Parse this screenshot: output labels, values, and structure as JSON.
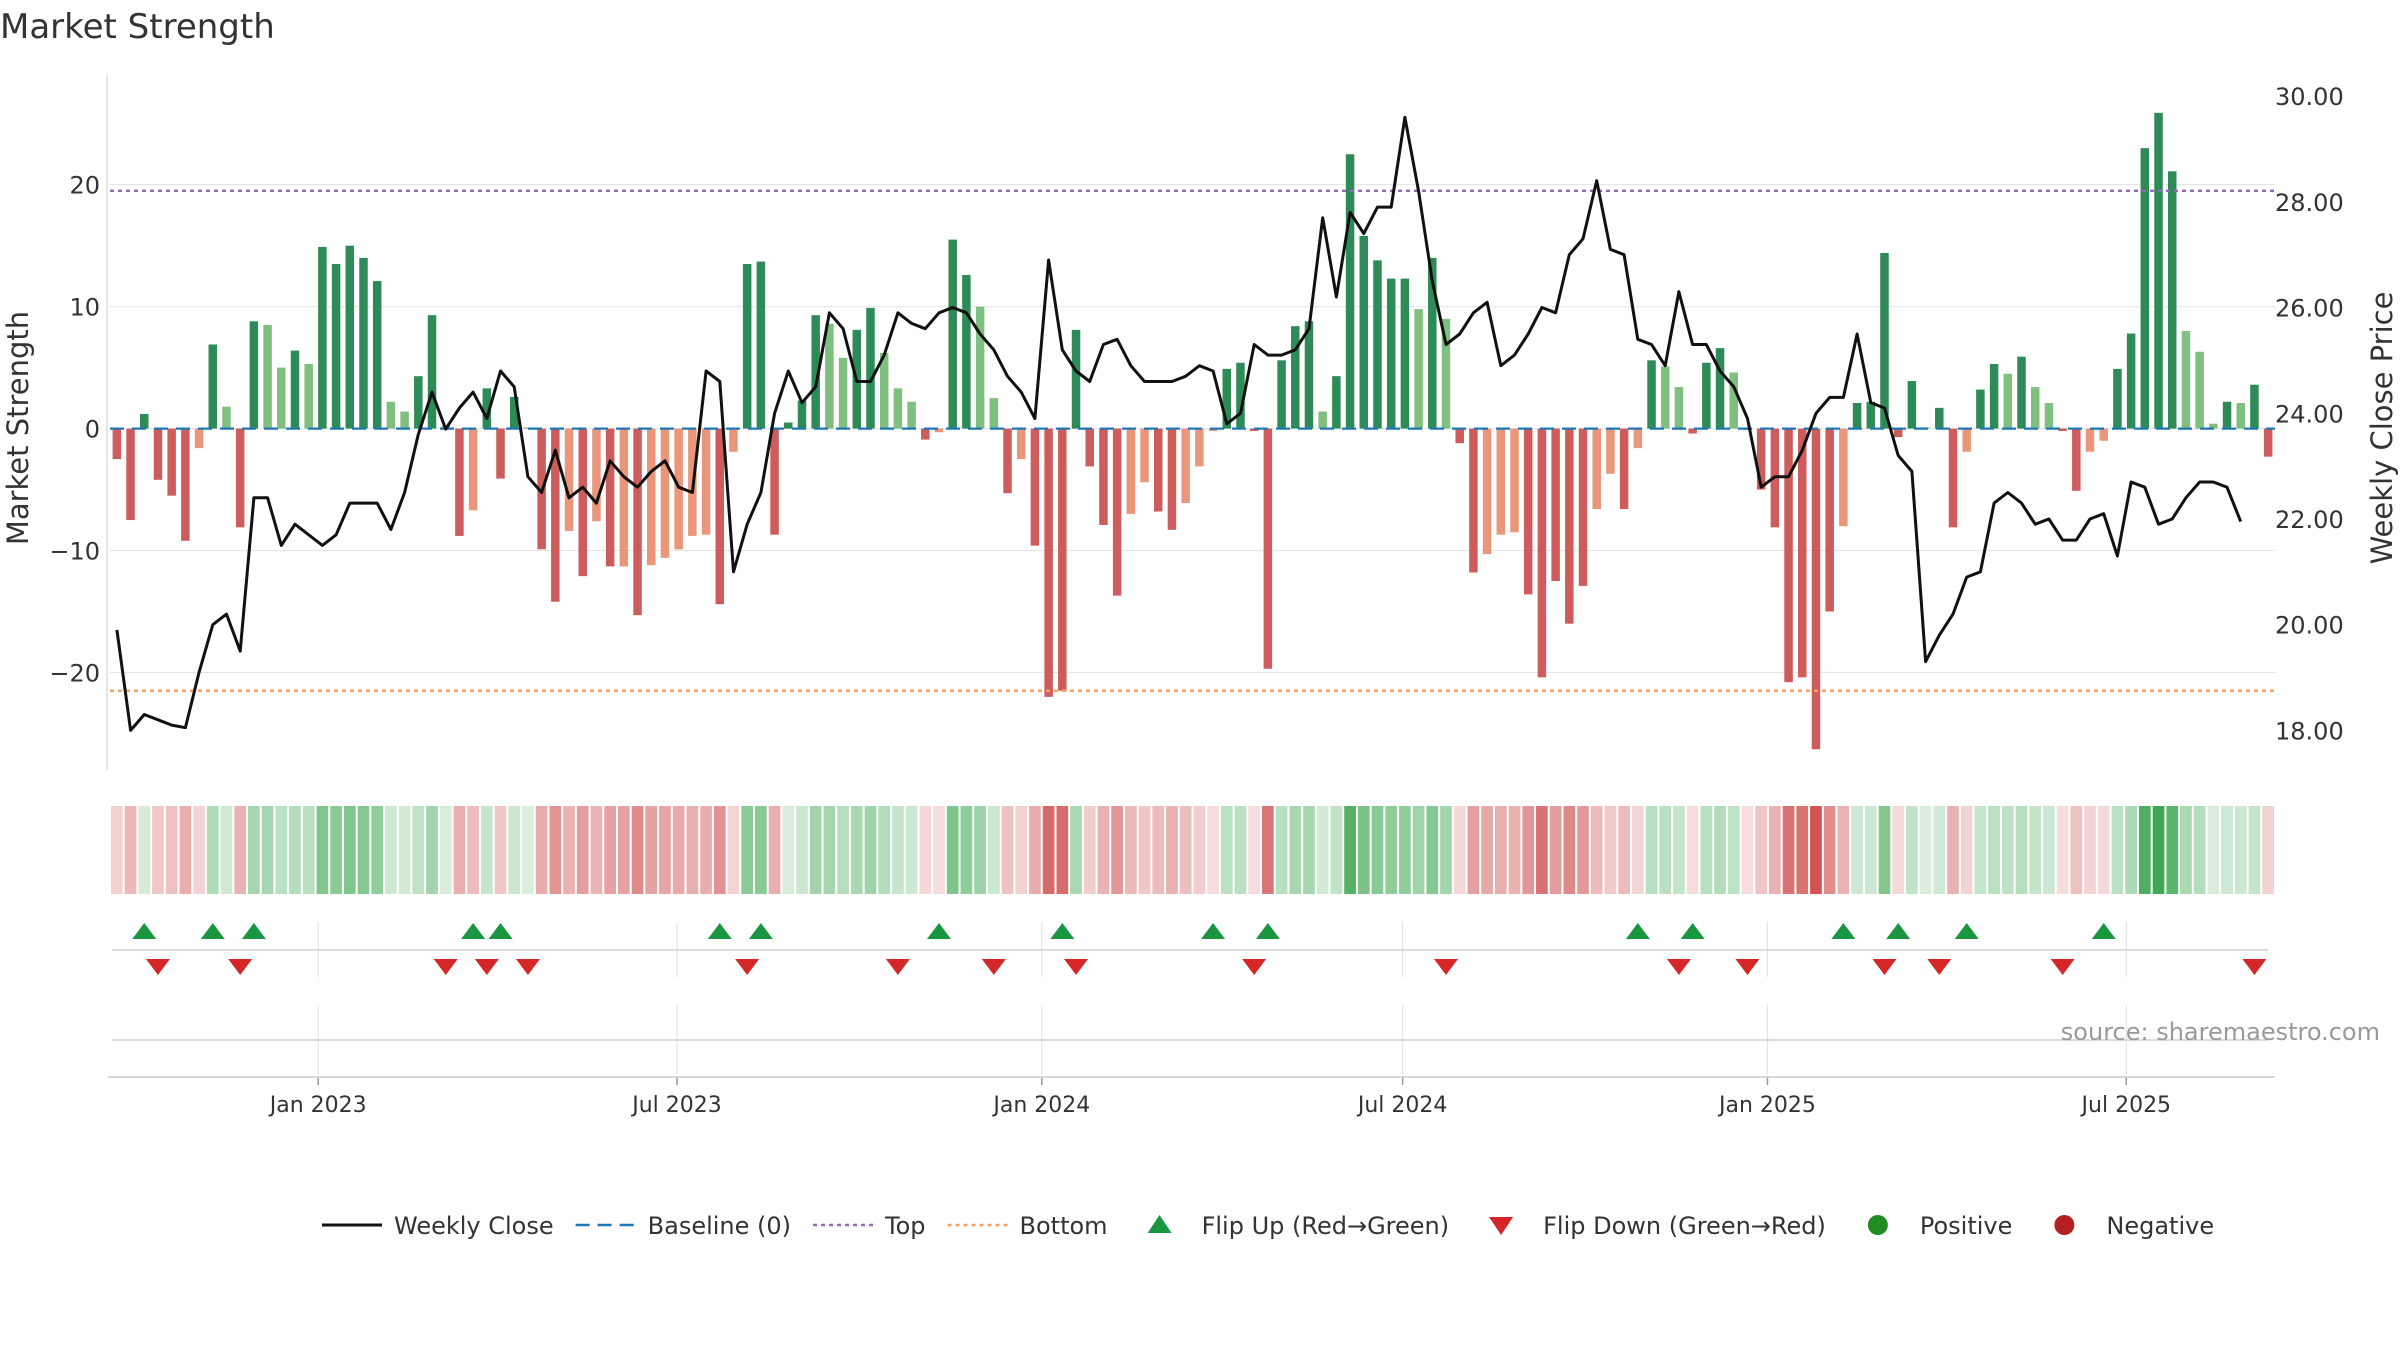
{
  "chart_data": {
    "type": "bar",
    "title": "Market Strength",
    "ylabel": "Market Strength",
    "y2label": "Weekly Close Price",
    "ylim": [
      -28,
      29
    ],
    "y2lim": [
      17.25,
      30.4
    ],
    "yticks": [
      -20,
      -10,
      0,
      10,
      20
    ],
    "y2ticks": [
      "18.00",
      "20.00",
      "22.00",
      "24.00",
      "26.00",
      "28.00",
      "30.00"
    ],
    "x_start": "2022-09-18",
    "x_end": "2025-09-14",
    "date_ticks": [
      {
        "date": "2023-01-01",
        "label": "Jan 2023"
      },
      {
        "date": "2023-07-01",
        "label": "Jul 2023"
      },
      {
        "date": "2024-01-01",
        "label": "Jan 2024"
      },
      {
        "date": "2024-07-01",
        "label": "Jul 2024"
      },
      {
        "date": "2025-01-01",
        "label": "Jan 2025"
      },
      {
        "date": "2025-07-01",
        "label": "Jul 2025"
      }
    ],
    "top_level": 19.5,
    "bottom_level": -21.5,
    "baseline": 0,
    "strength": [
      -2.5,
      -7.5,
      1.2,
      -4.2,
      -5.5,
      -9.2,
      -1.6,
      6.9,
      1.8,
      -8.1,
      8.8,
      8.5,
      5.0,
      6.4,
      5.3,
      14.9,
      13.5,
      15.0,
      14.0,
      12.1,
      2.2,
      1.4,
      4.3,
      9.3,
      0.2,
      -8.8,
      -6.7,
      3.3,
      -4.1,
      2.6,
      0.1,
      -9.9,
      -14.2,
      -8.4,
      -12.1,
      -7.6,
      -11.3,
      -11.3,
      -15.3,
      -11.2,
      -10.6,
      -9.9,
      -8.8,
      -8.7,
      -14.4,
      -1.9,
      13.5,
      13.7,
      -8.7,
      0.5,
      2.3,
      9.3,
      8.6,
      5.8,
      8.1,
      9.9,
      6.2,
      3.3,
      2.2,
      -0.9,
      -0.3,
      15.5,
      12.6,
      10.0,
      2.5,
      -5.3,
      -2.5,
      -9.6,
      -22.0,
      -21.5,
      8.1,
      -3.1,
      -7.9,
      -13.7,
      -7.0,
      -4.4,
      -6.8,
      -8.3,
      -6.1,
      -3.1,
      -0.2,
      4.9,
      5.4,
      -0.2,
      -19.7,
      5.6,
      8.4,
      8.8,
      1.4,
      4.3,
      22.5,
      15.8,
      13.8,
      12.3,
      12.3,
      9.8,
      14.0,
      9.0,
      -1.2,
      -11.8,
      -10.3,
      -8.7,
      -8.5,
      -13.6,
      -20.4,
      -12.5,
      -16.0,
      -12.9,
      -6.6,
      -3.7,
      -6.6,
      -1.6,
      5.6,
      5.1,
      3.4,
      -0.4,
      5.4,
      6.6,
      4.6,
      -0.1,
      -5.0,
      -8.1,
      -20.8,
      -20.4,
      -26.3,
      -15.0,
      -8.0,
      2.1,
      2.2,
      14.4,
      -0.7,
      3.9,
      0.1,
      1.7,
      -8.1,
      -1.9,
      3.2,
      5.3,
      4.5,
      5.9,
      3.4,
      2.1,
      -0.2,
      -5.1,
      -1.9,
      -1.0,
      4.9,
      7.8,
      23.0,
      25.9,
      21.1,
      8.0,
      6.3,
      0.4,
      2.2,
      2.1,
      3.6,
      -2.3
    ],
    "weekly_close": [
      19.9,
      18.0,
      18.3,
      18.2,
      18.1,
      18.05,
      19.1,
      20.0,
      20.2,
      19.5,
      22.4,
      22.4,
      21.5,
      21.9,
      21.7,
      21.5,
      21.7,
      22.3,
      22.3,
      22.3,
      21.8,
      22.5,
      23.6,
      24.4,
      23.7,
      24.1,
      24.4,
      23.9,
      24.8,
      24.5,
      22.8,
      22.5,
      23.3,
      22.4,
      22.6,
      22.3,
      23.1,
      22.8,
      22.6,
      22.9,
      23.1,
      22.6,
      22.5,
      24.8,
      24.6,
      21.0,
      21.9,
      22.5,
      24.0,
      24.8,
      24.2,
      24.5,
      25.9,
      25.6,
      24.6,
      24.6,
      25.1,
      25.9,
      25.7,
      25.6,
      25.9,
      26.0,
      25.9,
      25.5,
      25.2,
      24.7,
      24.4,
      23.9,
      26.9,
      25.2,
      24.8,
      24.6,
      25.3,
      25.4,
      24.9,
      24.6,
      24.6,
      24.6,
      24.7,
      24.9,
      24.8,
      23.8,
      24.0,
      25.3,
      25.1,
      25.1,
      25.2,
      25.6,
      27.7,
      26.2,
      27.8,
      27.4,
      27.9,
      27.9,
      29.6,
      28.2,
      26.5,
      25.3,
      25.5,
      25.9,
      26.1,
      24.9,
      25.1,
      25.5,
      26.0,
      25.9,
      27.0,
      27.3,
      28.4,
      27.1,
      27.0,
      25.4,
      25.3,
      24.9,
      26.3,
      25.3,
      25.3,
      24.8,
      24.5,
      23.9,
      22.6,
      22.8,
      22.8,
      23.3,
      24.0,
      24.3,
      24.3,
      25.5,
      24.2,
      24.1,
      23.2,
      22.9,
      19.3,
      19.8,
      20.2,
      20.9,
      21.0,
      22.3,
      22.5,
      22.3,
      21.9,
      22.0,
      21.6,
      21.6,
      22.0,
      22.1,
      21.3,
      22.7,
      22.6,
      21.9,
      22.0,
      22.4,
      22.7,
      22.7,
      22.6,
      21.95
    ],
    "flip_up_weeks": [
      2,
      7,
      10,
      26,
      28,
      44,
      47,
      60,
      69,
      80,
      84,
      111,
      115,
      126,
      130,
      135,
      145
    ],
    "flip_down_weeks": [
      3,
      9,
      24,
      27,
      30,
      46,
      57,
      64,
      70,
      83,
      97,
      114,
      119,
      129,
      133,
      142,
      156
    ],
    "legend": [
      {
        "label": "Weekly Close",
        "kind": "line"
      },
      {
        "label": "Baseline (0)",
        "kind": "dash"
      },
      {
        "label": "Top",
        "kind": "dot-purple"
      },
      {
        "label": "Bottom",
        "kind": "dot-orange"
      },
      {
        "label": "Flip Up (Red→Green)",
        "kind": "tri-up"
      },
      {
        "label": "Flip Down (Green→Red)",
        "kind": "tri-down"
      },
      {
        "label": "Positive",
        "kind": "circle-green"
      },
      {
        "label": "Negative",
        "kind": "circle-red"
      }
    ],
    "source": "source: sharemaestro.com"
  },
  "colors": {
    "pos_strong": "#2e8b57",
    "pos_light": "#7fbf7f",
    "neg_strong": "#cd5c5c",
    "neg_light": "#e9967a",
    "top_line": "#9467bd",
    "bottom_line": "#f4a460",
    "baseline": "#1f77b4",
    "close_line": "#111111",
    "flip_up": "#1a9641",
    "flip_down": "#d62728",
    "positive_dot": "#228b22",
    "negative_dot": "#b22222",
    "grid": "#e6e6e6",
    "text": "#333333"
  }
}
